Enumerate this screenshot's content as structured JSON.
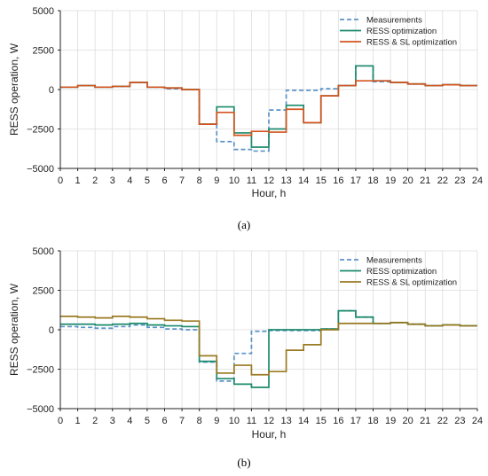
{
  "colors": {
    "measurements": "#5b93c9",
    "ress_opt": "#1c8a6c",
    "ress_sl_a": "#d2541f",
    "ress_sl_b": "#9a7a22",
    "grid": "#dcdcdc",
    "axis": "#222222"
  },
  "chart_data": [
    {
      "type": "line",
      "step": "post",
      "caption": "(a)",
      "xlabel": "Hour, h",
      "ylabel": "RESS operation, W",
      "xlim": [
        0,
        24
      ],
      "ylim": [
        -5000,
        5000
      ],
      "xticks": [
        0,
        1,
        2,
        3,
        4,
        5,
        6,
        7,
        8,
        9,
        10,
        11,
        12,
        13,
        14,
        15,
        16,
        17,
        18,
        19,
        20,
        21,
        22,
        23,
        24
      ],
      "yticks": [
        -5000,
        -2500,
        0,
        2500,
        5000
      ],
      "ytick_labels": [
        "−5000",
        "−2500",
        "0",
        "2500",
        "5000"
      ],
      "grid": true,
      "legend_position": "top-right",
      "series": [
        {
          "name": "Measurements",
          "style": "dashed",
          "color_key": "measurements",
          "values": [
            150,
            250,
            150,
            200,
            450,
            150,
            50,
            0,
            -2200,
            -3300,
            -3800,
            -3900,
            -1300,
            -50,
            -50,
            50,
            250,
            1500,
            500,
            450,
            350,
            250,
            300,
            250
          ]
        },
        {
          "name": "RESS optimization",
          "style": "solid",
          "color_key": "ress_opt",
          "values": [
            150,
            250,
            150,
            200,
            450,
            150,
            100,
            0,
            -2200,
            -1100,
            -2750,
            -3650,
            -2500,
            -1000,
            -2100,
            -400,
            250,
            1500,
            550,
            450,
            350,
            250,
            300,
            250
          ]
        },
        {
          "name": "RESS & SL optimization",
          "style": "solid",
          "color_key": "ress_sl_a",
          "values": [
            150,
            250,
            150,
            200,
            450,
            150,
            100,
            0,
            -2200,
            -1450,
            -2900,
            -2650,
            -2700,
            -1250,
            -2100,
            -400,
            250,
            550,
            550,
            450,
            350,
            250,
            300,
            250
          ]
        }
      ]
    },
    {
      "type": "line",
      "step": "post",
      "caption": "(b)",
      "xlabel": "Hour, h",
      "ylabel": "RESS operation, W",
      "xlim": [
        0,
        24
      ],
      "ylim": [
        -5000,
        5000
      ],
      "xticks": [
        0,
        1,
        2,
        3,
        4,
        5,
        6,
        7,
        8,
        9,
        10,
        11,
        12,
        13,
        14,
        15,
        16,
        17,
        18,
        19,
        20,
        21,
        22,
        23,
        24
      ],
      "yticks": [
        -5000,
        -2500,
        0,
        2500,
        5000
      ],
      "ytick_labels": [
        "−5000",
        "−2500",
        "0",
        "2500",
        "5000"
      ],
      "grid": true,
      "legend_position": "top-right",
      "series": [
        {
          "name": "Measurements",
          "style": "dashed",
          "color_key": "measurements",
          "values": [
            200,
            150,
            100,
            200,
            300,
            150,
            50,
            0,
            -2050,
            -3250,
            -1500,
            -100,
            -50,
            -50,
            -50,
            50,
            1200,
            800,
            400,
            450,
            350,
            250,
            300,
            250
          ]
        },
        {
          "name": "RESS optimization",
          "style": "solid",
          "color_key": "ress_opt",
          "values": [
            350,
            350,
            300,
            350,
            400,
            300,
            250,
            200,
            -2000,
            -3100,
            -3450,
            -3650,
            0,
            0,
            0,
            50,
            1200,
            800,
            400,
            450,
            350,
            250,
            300,
            250
          ]
        },
        {
          "name": "RESS & SL optimization",
          "style": "solid",
          "color_key": "ress_sl_b",
          "values": [
            850,
            800,
            750,
            850,
            800,
            700,
            600,
            550,
            -1650,
            -2750,
            -2250,
            -2850,
            -2650,
            -1300,
            -950,
            0,
            400,
            400,
            400,
            450,
            350,
            250,
            300,
            250
          ]
        }
      ]
    }
  ]
}
